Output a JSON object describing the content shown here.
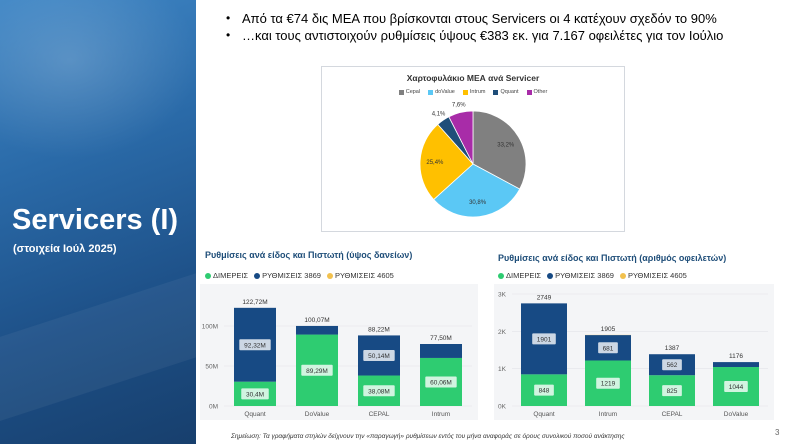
{
  "side": {
    "title": "Servicers (I)",
    "subtitle": "(στοιχεία Ιούλ 2025)"
  },
  "bullets": [
    "Από τα €74 δις ΜΕΑ που βρίσκονται στους Servicers οι 4 κατέχουν σχεδόν το 90%",
    "…και τους αντιστοιχούν ρυθμίσεις ύψους €383 εκ. για 7.167 οφειλέτες για τον Ιούλιο"
  ],
  "colors": {
    "panel": "#2a6aa8",
    "dimereis": "#2ecc71",
    "rythmiseis3869": "#174a84",
    "rythmiseis4605": "#f2c14e",
    "cepal": "#808080",
    "dovalue": "#5bc8f5",
    "intrum": "#ffc000",
    "qquant": "#1f4e79",
    "other": "#a82ca8"
  },
  "footnote": "Σημείωση: Τα γραφήματα στηλών δείχνουν την «παραγωγή» ρυθμίσεων εντός του μήνα αναφοράς σε όρους συνολικού ποσού ανάκτησης",
  "page_number": "3",
  "chart_data": [
    {
      "type": "pie",
      "title": "Χαρτοφυλάκιο ΜΕΑ ανά Servicer",
      "categories": [
        "Cepal",
        "doValue",
        "Intrum",
        "Qquant",
        "Other"
      ],
      "values": [
        33.2,
        30.8,
        25.4,
        4.1,
        7.6
      ],
      "labels": [
        "33,2%",
        "30,8%",
        "25,4%",
        "4,1%",
        "7,6%"
      ],
      "colors": [
        "#808080",
        "#5bc8f5",
        "#ffc000",
        "#1f4e79",
        "#a82ca8"
      ],
      "legend": "top"
    },
    {
      "type": "bar",
      "title": "Ρυθμίσεις ανά είδος και Πιστωτή (ύψος δανείων)",
      "categories": [
        "Qquant",
        "DoValue",
        "CEPAL",
        "Intrum"
      ],
      "series": [
        {
          "name": "ΔΙΜΕΡΕΙΣ",
          "values": [
            30.4,
            89.29,
            38.08,
            60.06
          ],
          "labels": [
            "30,4M",
            "89,29M",
            "38,08M",
            "60,06M"
          ]
        },
        {
          "name": "ΡΥΘΜΙΣΕΙΣ 3869",
          "values": [
            92.32,
            10.78,
            50.14,
            17.44
          ],
          "labels": [
            "92,32M",
            "",
            "50,14M",
            ""
          ]
        },
        {
          "name": "ΡΥΘΜΙΣΕΙΣ 4605",
          "values": [
            0,
            0,
            0,
            0
          ],
          "labels": [
            "",
            "",
            "",
            ""
          ]
        }
      ],
      "totals": [
        "122,72M",
        "100,07M",
        "88,22M",
        "77,50M"
      ],
      "total_values": [
        122.72,
        100.07,
        88.22,
        77.5
      ],
      "yticks": [
        "0M",
        "50M",
        "100M"
      ],
      "ytick_values": [
        0,
        50,
        100
      ],
      "ylim": [
        0,
        130
      ],
      "legend": "top-left"
    },
    {
      "type": "bar",
      "title": "Ρυθμίσεις ανά είδος και Πιστωτή (αριθμός οφειλετών)",
      "categories": [
        "Qquant",
        "Intrum",
        "CEPAL",
        "DoValue"
      ],
      "series": [
        {
          "name": "ΔΙΜΕΡΕΙΣ",
          "values": [
            848,
            1219,
            825,
            1044
          ],
          "labels": [
            "848",
            "1219",
            "825",
            "1044"
          ]
        },
        {
          "name": "ΡΥΘΜΙΣΕΙΣ 3869",
          "values": [
            1901,
            681,
            562,
            132
          ],
          "labels": [
            "1901",
            "681",
            "562",
            ""
          ]
        },
        {
          "name": "ΡΥΘΜΙΣΕΙΣ 4605",
          "values": [
            0,
            5,
            0,
            0
          ],
          "labels": [
            "",
            "",
            "",
            ""
          ]
        }
      ],
      "totals": [
        "2749",
        "1905",
        "1387",
        "1176"
      ],
      "total_values": [
        2749,
        1905,
        1387,
        1176
      ],
      "yticks": [
        "0K",
        "1K",
        "2K",
        "3K"
      ],
      "ytick_values": [
        0,
        1000,
        2000,
        3000
      ],
      "ylim": [
        0,
        3000
      ],
      "legend": "top-left"
    }
  ]
}
